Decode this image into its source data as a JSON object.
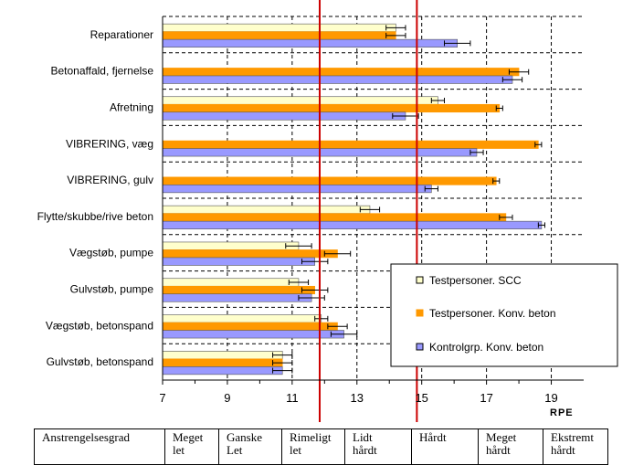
{
  "chart_data": {
    "type": "bar",
    "orientation": "horizontal",
    "xlabel": "RPE",
    "xlim": [
      7,
      20
    ],
    "xticks": [
      7,
      9,
      11,
      13,
      15,
      17,
      19
    ],
    "grid": "dashed vertical and horizontal",
    "legend_position": "right",
    "categories": [
      "Reparationer",
      "Betonaffald, fjernelse",
      "Afretning",
      "VIBRERING, væg",
      "VIBRERING, gulv",
      "Flytte/skubbe/rive beton",
      "Vægstøb, pumpe",
      "Gulvstøb, pumpe",
      "Vægstøb, betonspand",
      "Gulvstøb, betonspand"
    ],
    "series": [
      {
        "name": "Testpersoner. SCC",
        "color": "#ffffcc",
        "values": [
          14.2,
          null,
          15.5,
          null,
          null,
          13.4,
          11.2,
          11.2,
          11.9,
          10.7
        ],
        "errors": [
          0.3,
          null,
          0.2,
          null,
          null,
          0.3,
          0.4,
          0.3,
          0.2,
          0.3
        ]
      },
      {
        "name": "Testpersoner. Konv. beton",
        "color": "#ff9900",
        "values": [
          14.2,
          18.0,
          17.4,
          18.6,
          17.3,
          17.6,
          12.4,
          11.7,
          12.4,
          10.7
        ],
        "errors": [
          0.3,
          0.3,
          0.1,
          0.1,
          0.1,
          0.2,
          0.4,
          0.4,
          0.3,
          0.3
        ]
      },
      {
        "name": "Kontrolgrp. Konv. beton",
        "color": "#9999ff",
        "values": [
          16.1,
          17.8,
          14.5,
          16.7,
          15.3,
          18.7,
          11.7,
          11.6,
          12.6,
          10.7
        ],
        "errors": [
          0.4,
          0.3,
          0.4,
          0.2,
          0.2,
          0.1,
          0.4,
          0.4,
          0.4,
          0.3
        ]
      }
    ],
    "reference_lines": [
      11.85,
      14.85
    ],
    "reference_line_color": "#cc0000"
  },
  "scale_table": [
    [
      "Anstrengelsesgrad"
    ],
    [
      "Meget",
      "let"
    ],
    [
      "Ganske",
      "Let"
    ],
    [
      "Rimeligt",
      "let"
    ],
    [
      "Lidt",
      "hårdt"
    ],
    [
      "Hårdt"
    ],
    [
      "Meget",
      "hårdt"
    ],
    [
      "Ekstremt",
      "hårdt"
    ]
  ]
}
